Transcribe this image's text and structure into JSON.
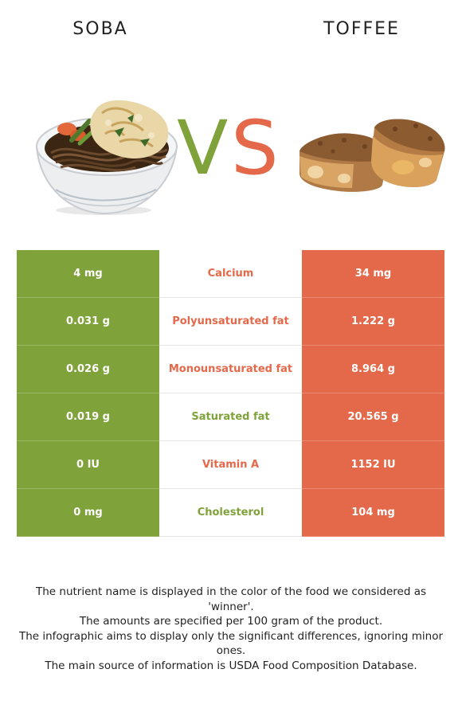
{
  "foods": {
    "left": {
      "name": "SOBA",
      "color": "#7fa23a",
      "image_icon": "soba-noodle-bowl-image"
    },
    "right": {
      "name": "TOFFEE",
      "color": "#e4694a",
      "image_icon": "toffee-pieces-image"
    }
  },
  "vs": {
    "v": "V",
    "s": "S"
  },
  "rows": [
    {
      "left": "4 mg",
      "nutrient": "Calcium",
      "right": "34 mg",
      "winner": "right"
    },
    {
      "left": "0.031 g",
      "nutrient": "Polyunsaturated fat",
      "right": "1.222 g",
      "winner": "right"
    },
    {
      "left": "0.026 g",
      "nutrient": "Monounsaturated fat",
      "right": "8.964 g",
      "winner": "right"
    },
    {
      "left": "0.019 g",
      "nutrient": "Saturated fat",
      "right": "20.565 g",
      "winner": "left"
    },
    {
      "left": "0 IU",
      "nutrient": "Vitamin A",
      "right": "1152 IU",
      "winner": "right"
    },
    {
      "left": "0 mg",
      "nutrient": "Cholesterol",
      "right": "104 mg",
      "winner": "left"
    }
  ],
  "footer": {
    "line1": "The nutrient name is displayed in the color of the food we considered as 'winner'.",
    "line2": "The amounts are specified per 100 gram of the product.",
    "line3": "The infographic aims to display only the significant differences, ignoring minor ones.",
    "line4": "The main source of information is USDA Food Composition Database."
  }
}
